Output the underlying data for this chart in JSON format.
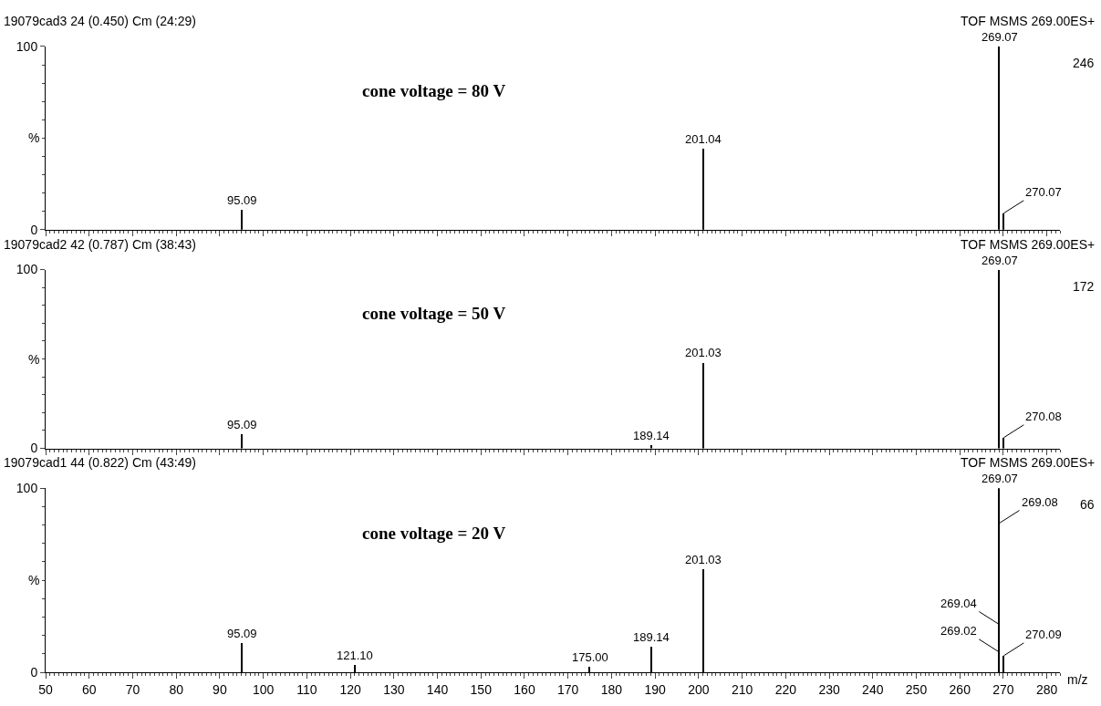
{
  "chart_data": [
    {
      "type": "bar",
      "title": "19079cad3 24 (0.450) Cm (24:29)",
      "subtitle": "TOF MSMS 269.00ES+",
      "ylabel": "%",
      "color": "#000000",
      "x": [
        95.09,
        201.04,
        269.07,
        270.07
      ],
      "values": [
        11,
        44,
        100,
        9
      ],
      "xlim": [
        50,
        283
      ],
      "xticks": [
        50,
        60,
        70,
        80,
        90,
        100,
        110,
        120,
        130,
        140,
        150,
        160,
        170,
        180,
        190,
        200,
        210,
        220,
        230,
        240,
        250,
        260,
        270,
        280
      ],
      "ylim": [
        0,
        100
      ],
      "yticks": [
        0,
        100
      ],
      "tick_labels": "y",
      "annotations": [
        "cone voltage = 80 V",
        "246",
        {
          "text": "95.09",
          "x": 95.09,
          "y": 11
        },
        {
          "text": "201.04",
          "x": 201.04,
          "y": 44
        },
        {
          "text": "269.07",
          "x": 269.07,
          "y": 100
        },
        {
          "text": "270.07",
          "x": 270.07,
          "y": 9
        }
      ]
    },
    {
      "type": "bar",
      "title": "19079cad2 42 (0.787) Cm (38:43)",
      "subtitle": "TOF MSMS 269.00ES+",
      "ylabel": "%",
      "color": "#000000",
      "x": [
        95.09,
        189.14,
        201.03,
        269.07,
        270.08
      ],
      "values": [
        8,
        2,
        48,
        100,
        6
      ],
      "xlim": [
        50,
        283
      ],
      "xticks": [
        50,
        60,
        70,
        80,
        90,
        100,
        110,
        120,
        130,
        140,
        150,
        160,
        170,
        180,
        190,
        200,
        210,
        220,
        230,
        240,
        250,
        260,
        270,
        280
      ],
      "ylim": [
        0,
        100
      ],
      "yticks": [
        0,
        100
      ],
      "tick_labels": "y",
      "annotations": [
        "cone voltage = 50 V",
        "172",
        {
          "text": "95.09",
          "x": 95.09,
          "y": 8
        },
        {
          "text": "189.14",
          "x": 189.14,
          "y": 2
        },
        {
          "text": "201.03",
          "x": 201.03,
          "y": 48
        },
        {
          "text": "269.07",
          "x": 269.07,
          "y": 100
        },
        {
          "text": "270.08",
          "x": 270.08,
          "y": 6
        }
      ]
    },
    {
      "type": "bar",
      "title": "19079cad1 44 (0.822) Cm (43:49)",
      "subtitle": "TOF MSMS 269.00ES+",
      "ylabel": "%",
      "xlabel": "m/z",
      "color": "#000000",
      "x": [
        95.09,
        121.1,
        175.0,
        189.14,
        201.03,
        269.07,
        270.09
      ],
      "values": [
        16,
        4,
        3,
        14,
        56,
        100,
        9
      ],
      "xlim": [
        50,
        283
      ],
      "xticks": [
        50,
        60,
        70,
        80,
        90,
        100,
        110,
        120,
        130,
        140,
        150,
        160,
        170,
        180,
        190,
        200,
        210,
        220,
        230,
        240,
        250,
        260,
        270,
        280
      ],
      "ylim": [
        0,
        100
      ],
      "yticks": [
        0,
        100
      ],
      "annotations": [
        "cone voltage = 20 V",
        "66",
        {
          "text": "95.09",
          "x": 95.09,
          "y": 16
        },
        {
          "text": "121.10",
          "x": 121.1,
          "y": 4
        },
        {
          "text": "175.00",
          "x": 175.0,
          "y": 3
        },
        {
          "text": "189.14",
          "x": 189.14,
          "y": 14
        },
        {
          "text": "201.03",
          "x": 201.03,
          "y": 56
        },
        {
          "text": "269.07",
          "x": 269.07,
          "y": 100
        },
        {
          "text": "269.08",
          "x": 269.08,
          "y": 81
        },
        {
          "text": "269.04",
          "x": 269.04,
          "y": 26
        },
        {
          "text": "269.02",
          "x": 269.02,
          "y": 11
        },
        {
          "text": "270.09",
          "x": 270.09,
          "y": 9
        }
      ]
    }
  ]
}
